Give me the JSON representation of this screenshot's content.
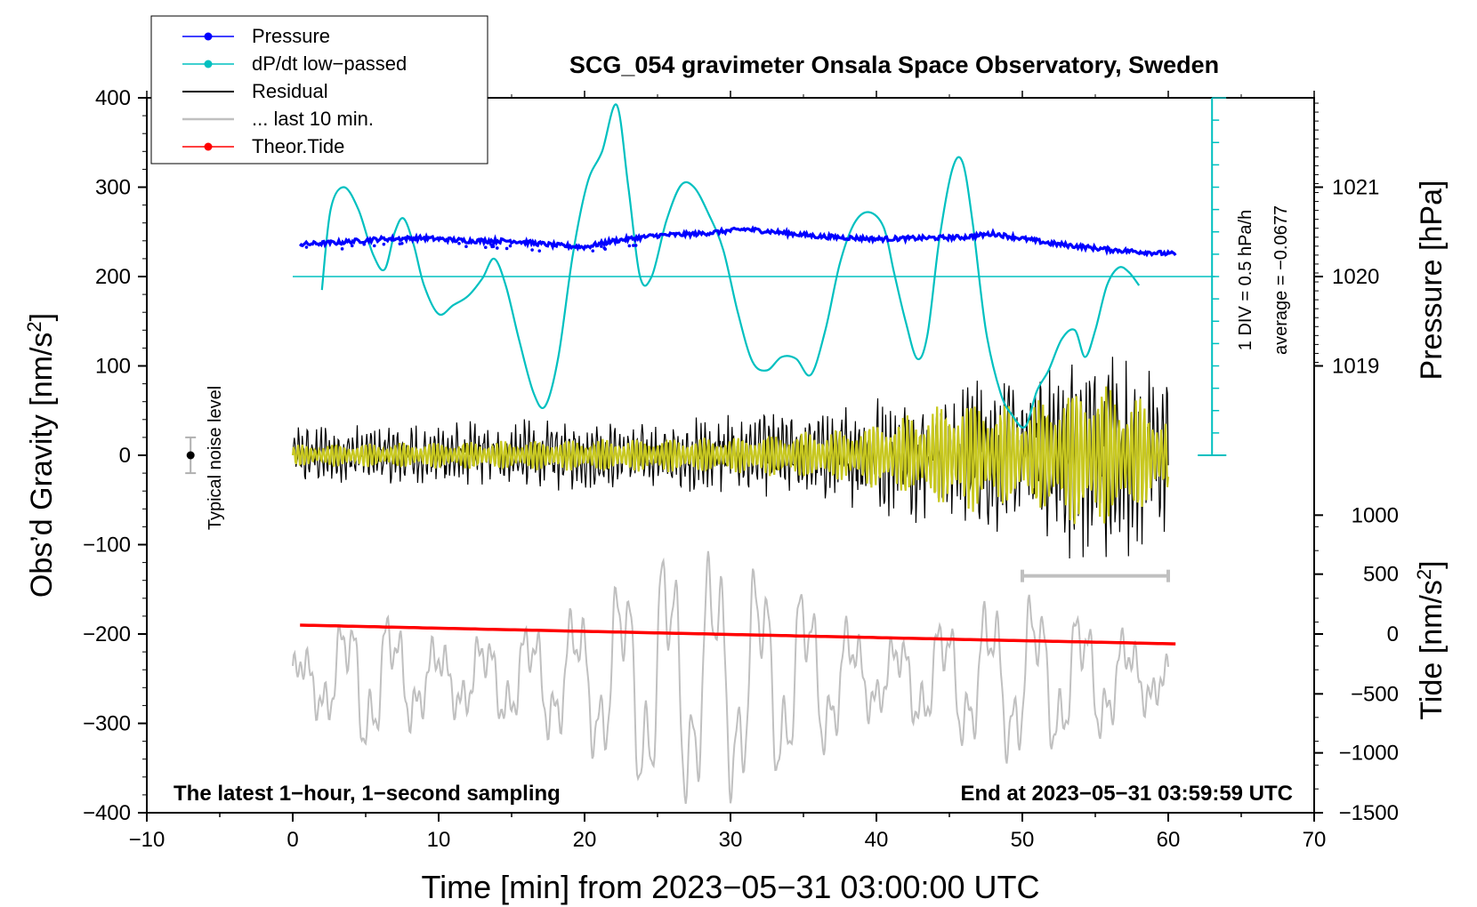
{
  "chart_data": {
    "type": "line",
    "title": "SCG_054 gravimeter Onsala Space Observatory, Sweden",
    "xlabel": "Time [min] from 2023−05−31 03:00:00 UTC",
    "ylabel_left": "Obs’d Gravity [nm/s²]",
    "ylabel_left_main": "Obs’d Gravity [nm/s",
    "ylabel_left_sup": "2",
    "ylabel_left_end": "]",
    "ylabel_right_pressure": "Pressure [hPa]",
    "ylabel_right_tide_main": "Tide [nm/s",
    "ylabel_right_tide_sup": "2",
    "ylabel_right_tide_end": "]",
    "xlim": [
      -10,
      70
    ],
    "ylim_left": [
      -400,
      400
    ],
    "x_ticks": [
      "−10",
      "0",
      "10",
      "20",
      "30",
      "40",
      "50",
      "60",
      "70"
    ],
    "x_tick_values": [
      -10,
      0,
      10,
      20,
      30,
      40,
      50,
      60,
      70
    ],
    "y_left_ticks": [
      "400",
      "300",
      "200",
      "100",
      "0",
      "−100",
      "−200",
      "−300",
      "−400"
    ],
    "y_left_tick_values": [
      400,
      300,
      200,
      100,
      0,
      -100,
      -200,
      -300,
      -400
    ],
    "pressure_axis": {
      "ticks": [
        "1021",
        "1020",
        "1019"
      ],
      "values": [
        1021,
        1020,
        1019
      ],
      "left_equivalent": [
        300,
        200,
        100
      ]
    },
    "tide_axis": {
      "ticks": [
        "1000",
        "500",
        "0",
        "−500",
        "−1000",
        "−1500"
      ],
      "values": [
        1000,
        500,
        0,
        -500,
        -1000,
        -1500
      ],
      "left_equivalent": [
        -67,
        -133,
        -200,
        -267,
        -333,
        -400
      ]
    },
    "legend": [
      {
        "label": "Pressure",
        "color": "#0000ff",
        "marker": true
      },
      {
        "label": "dP/dt low−passed",
        "color": "#00c0c0",
        "marker": true
      },
      {
        "label": "Residual",
        "color": "#000000",
        "marker": false
      },
      {
        "label": "... last 10 min.",
        "color": "#c0c0c0",
        "marker": false
      },
      {
        "label": "Theor.Tide",
        "color": "#ff0000",
        "marker": true
      }
    ],
    "annotations": {
      "bottom_left": "The latest 1−hour, 1−second sampling",
      "bottom_right": "End at 2023−05−31 03:59:59 UTC",
      "noise_label": "Typical noise level",
      "dpdt_div": "1 DIV = 0.5 hPa/h",
      "dpdt_average": "average = −0.0677"
    },
    "noise_bar": {
      "x": -7,
      "y": 0,
      "half_range": 20
    },
    "last10_range_bar": {
      "x_from": 50,
      "x_to": 60,
      "y": -135
    },
    "dpdt_zero_line_y": 200,
    "dpdt_scale": {
      "x": 63,
      "y_from": 0,
      "y_to": 400,
      "divisions": 16
    },
    "series": [
      {
        "name": "Pressure",
        "color": "#0000ff",
        "noise": 2.5,
        "x": [
          0.5,
          3,
          6,
          9,
          12,
          15,
          18,
          20,
          22,
          25,
          28,
          31,
          33,
          36,
          40,
          43,
          46,
          48,
          52,
          56,
          60.5
        ],
        "values": [
          236,
          238,
          242,
          243,
          240,
          240,
          235,
          233,
          240,
          246,
          248,
          253,
          250,
          245,
          242,
          243,
          244,
          248,
          237,
          230,
          225
        ]
      },
      {
        "name": "dP/dt low−passed",
        "color": "#00c0c0",
        "x": [
          2,
          2.6,
          3.5,
          4.5,
          5.5,
          6.3,
          7,
          7.6,
          8.3,
          9,
          10,
          11,
          12,
          13,
          13.8,
          14.6,
          15.5,
          16.5,
          17.3,
          18.2,
          19.2,
          20.2,
          21.2,
          22.2,
          23,
          23.8,
          24.6,
          25.6,
          26.6,
          27.5,
          28.5,
          29.5,
          30.5,
          31.5,
          32.5,
          33.5,
          34.5,
          35.5,
          36.5,
          37.5,
          38.5,
          39.5,
          40.5,
          41.2,
          42,
          42.8,
          43.5,
          44.3,
          45.2,
          45.9,
          46.6,
          47.5,
          48.5,
          49.3,
          50.2,
          51,
          51.8,
          52.7,
          53.6,
          54.3,
          55,
          55.8,
          56.6,
          57.3,
          58
        ],
        "values": [
          185,
          275,
          300,
          275,
          225,
          208,
          250,
          265,
          235,
          190,
          158,
          168,
          178,
          198,
          220,
          190,
          130,
          70,
          55,
          110,
          225,
          305,
          340,
          392,
          300,
          200,
          200,
          262,
          302,
          300,
          270,
          230,
          160,
          105,
          95,
          110,
          108,
          90,
          140,
          215,
          260,
          272,
          255,
          205,
          150,
          108,
          135,
          240,
          320,
          328,
          260,
          140,
          70,
          45,
          32,
          72,
          95,
          130,
          140,
          110,
          140,
          190,
          210,
          205,
          190
        ]
      },
      {
        "name": "Residual",
        "color": "#000000",
        "envelope_x": [
          0,
          5,
          10,
          15,
          20,
          25,
          30,
          35,
          40,
          44,
          47,
          50,
          53,
          55,
          57,
          60
        ],
        "envelope_amp": [
          35,
          35,
          38,
          42,
          40,
          35,
          52,
          45,
          72,
          78,
          95,
          90,
          115,
          130,
          115,
          95
        ]
      },
      {
        "name": "Residual filtered",
        "color": "#c8c820",
        "envelope_x": [
          0,
          10,
          20,
          30,
          38,
          42,
          46,
          50,
          53,
          55,
          58,
          60
        ],
        "envelope_amp": [
          12,
          15,
          18,
          20,
          30,
          45,
          65,
          55,
          75,
          85,
          65,
          45
        ]
      },
      {
        "name": "... last 10 min.",
        "color": "#c0c0c0",
        "center": -250,
        "envelope_x": [
          0,
          5,
          10,
          15,
          20,
          25,
          30,
          35,
          40,
          45,
          50,
          55,
          60
        ],
        "envelope_amp": [
          20,
          100,
          40,
          60,
          90,
          170,
          160,
          120,
          40,
          80,
          110,
          80,
          20
        ]
      },
      {
        "name": "Theor.Tide",
        "color": "#ff0000",
        "x": [
          0.5,
          10,
          20,
          30,
          40,
          50,
          60.5
        ],
        "values": [
          -190,
          -193.5,
          -197,
          -200.5,
          -204,
          -207.5,
          -211
        ]
      }
    ]
  }
}
